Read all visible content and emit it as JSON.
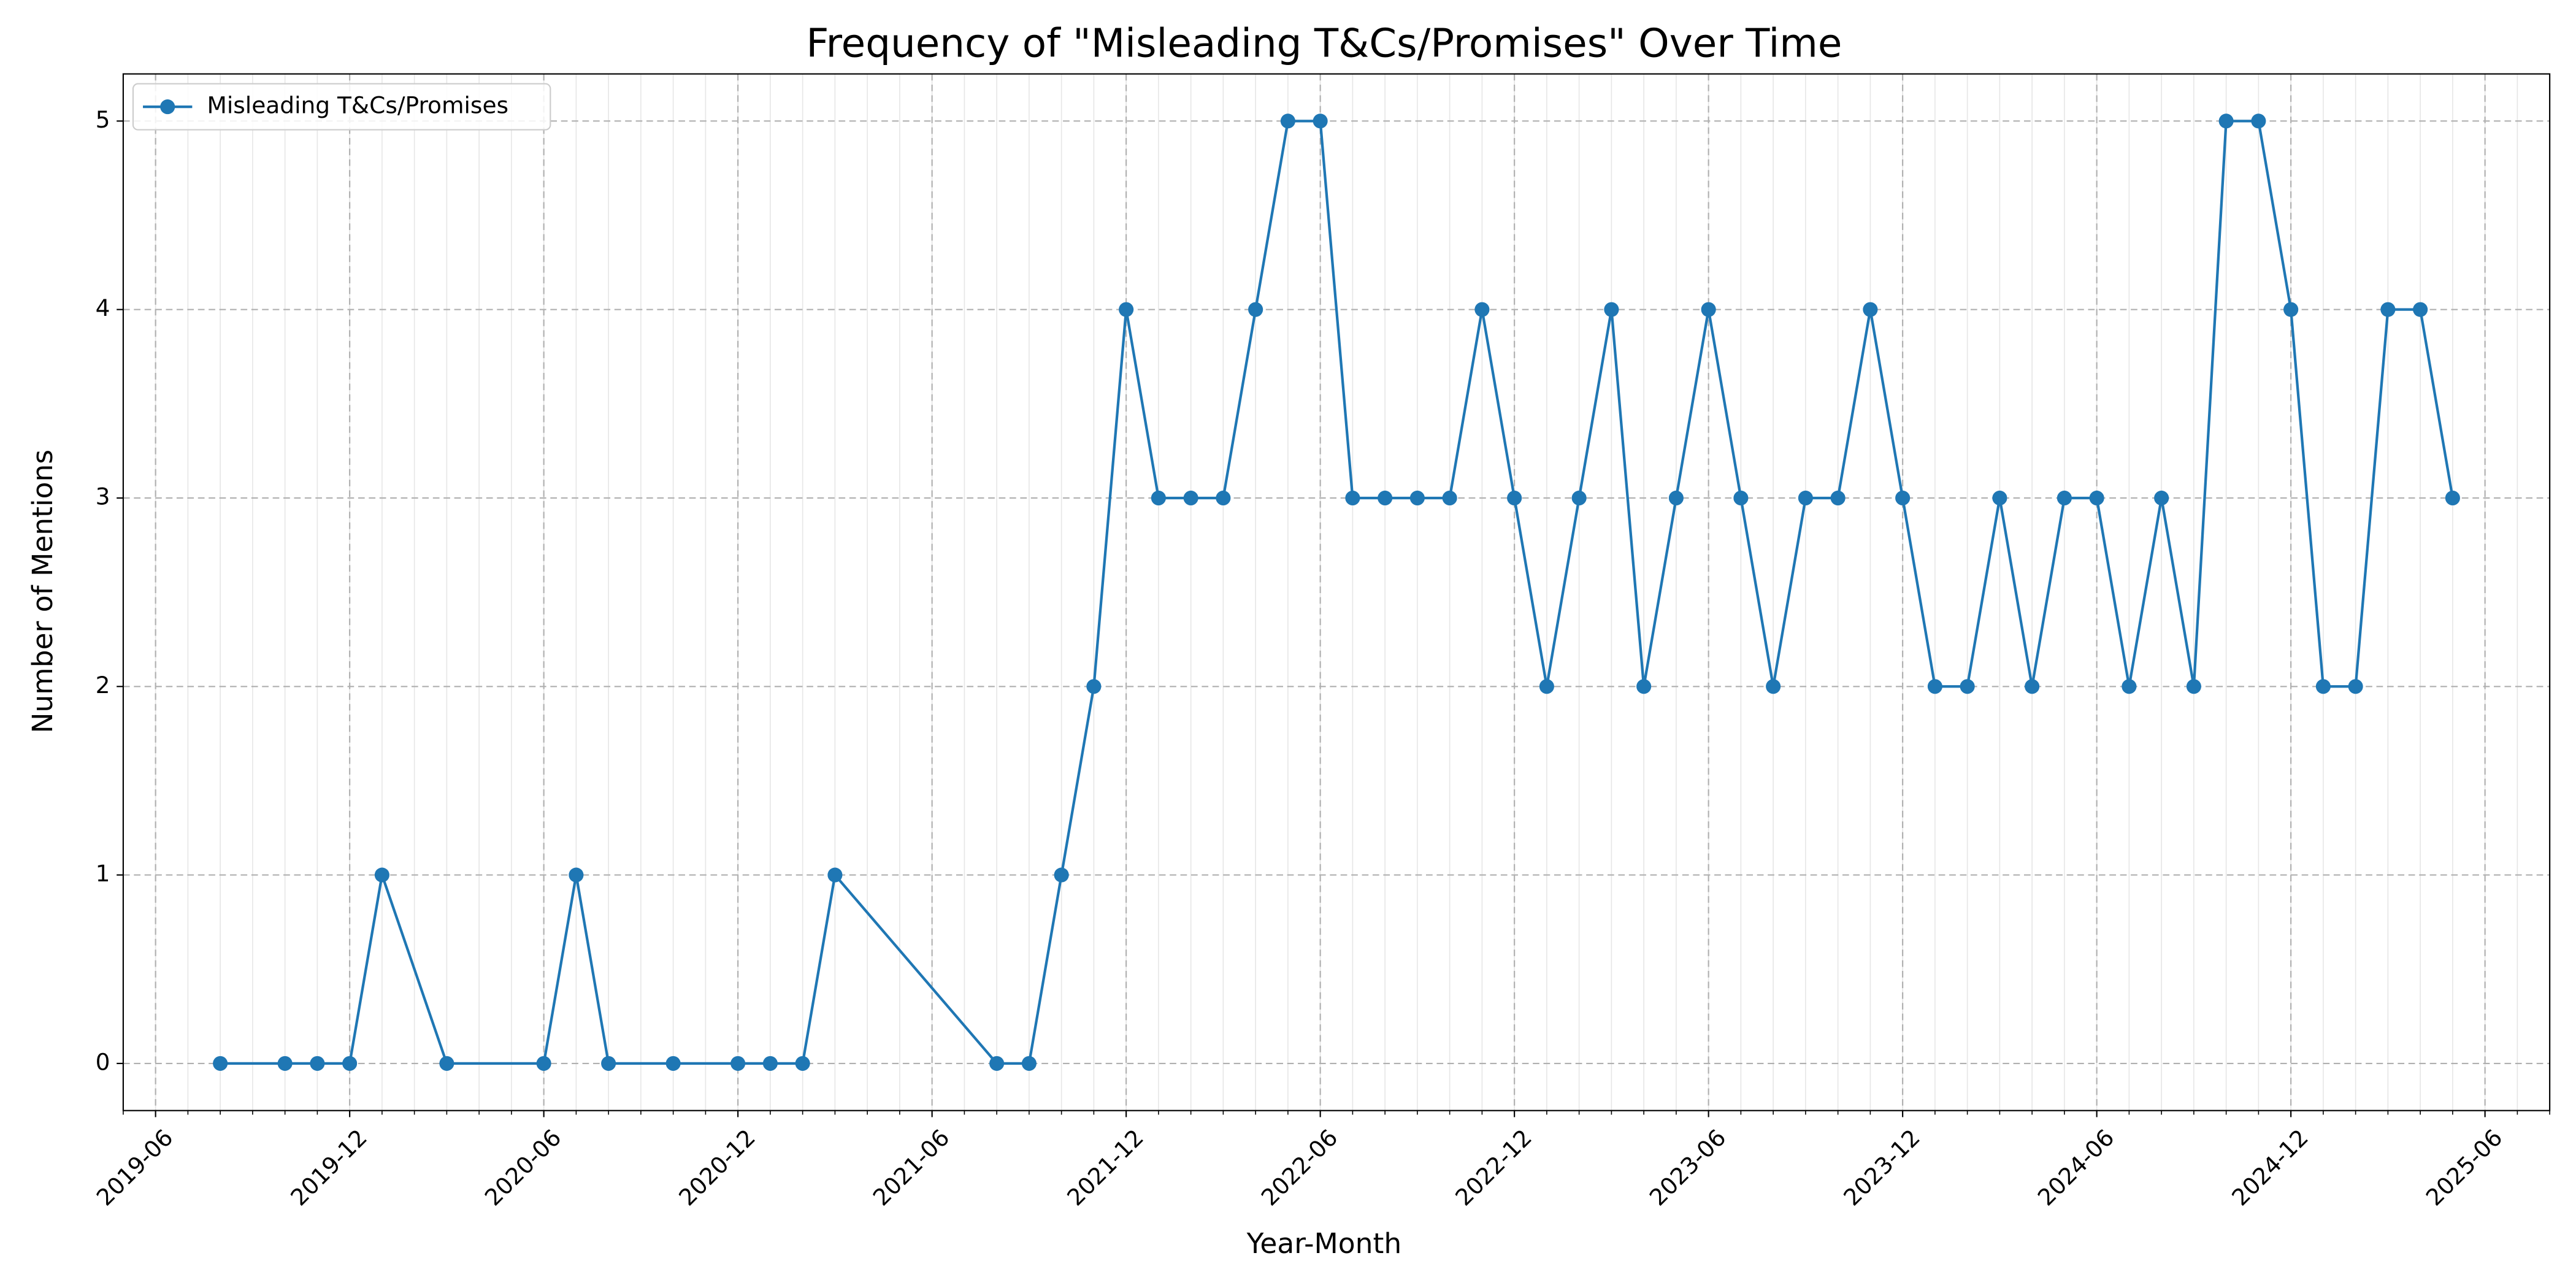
{
  "chart_data": {
    "type": "line",
    "title": "Frequency of \"Misleading T&Cs/Promises\" Over Time",
    "x_label": "Year-Month",
    "y_label": "Number of Mentions",
    "x": [
      "2019-08",
      "2019-10",
      "2019-11",
      "2019-12",
      "2020-01",
      "2020-03",
      "2020-06",
      "2020-07",
      "2020-08",
      "2020-10",
      "2020-12",
      "2021-01",
      "2021-02",
      "2021-03",
      "2021-08",
      "2021-09",
      "2021-10",
      "2021-11",
      "2021-12",
      "2022-01",
      "2022-02",
      "2022-03",
      "2022-04",
      "2022-05",
      "2022-06",
      "2022-07",
      "2022-08",
      "2022-09",
      "2022-10",
      "2022-11",
      "2022-12",
      "2023-01",
      "2023-02",
      "2023-03",
      "2023-04",
      "2023-05",
      "2023-06",
      "2023-07",
      "2023-08",
      "2023-09",
      "2023-10",
      "2023-11",
      "2023-12",
      "2024-01",
      "2024-02",
      "2024-03",
      "2024-04",
      "2024-05",
      "2024-06",
      "2024-07",
      "2024-08",
      "2024-09",
      "2024-10",
      "2024-11",
      "2024-12",
      "2025-01",
      "2025-02",
      "2025-03",
      "2025-04",
      "2025-05"
    ],
    "series": [
      {
        "name": "Misleading T&Cs/Promises",
        "color": "#1f77b4",
        "values": [
          0,
          0,
          0,
          0,
          1,
          0,
          0,
          1,
          0,
          0,
          0,
          0,
          0,
          1,
          0,
          0,
          1,
          2,
          4,
          3,
          3,
          3,
          4,
          5,
          5,
          3,
          3,
          3,
          3,
          4,
          3,
          2,
          3,
          4,
          2,
          3,
          4,
          3,
          2,
          3,
          3,
          4,
          3,
          2,
          2,
          3,
          2,
          3,
          3,
          2,
          3,
          2,
          5,
          5,
          4,
          2,
          2,
          4,
          4,
          3
        ]
      }
    ],
    "xlim": [
      "2019-05",
      "2025-08"
    ],
    "xticks": [
      "2019-06",
      "2019-12",
      "2020-06",
      "2020-12",
      "2021-06",
      "2021-12",
      "2022-06",
      "2022-12",
      "2023-06",
      "2023-12",
      "2024-06",
      "2024-12",
      "2025-06"
    ],
    "ylim": [
      -0.25,
      5.25
    ],
    "yticks": [
      0,
      1,
      2,
      3,
      4,
      5
    ],
    "grid": true,
    "minor_grid": true,
    "legend": "upper left"
  }
}
